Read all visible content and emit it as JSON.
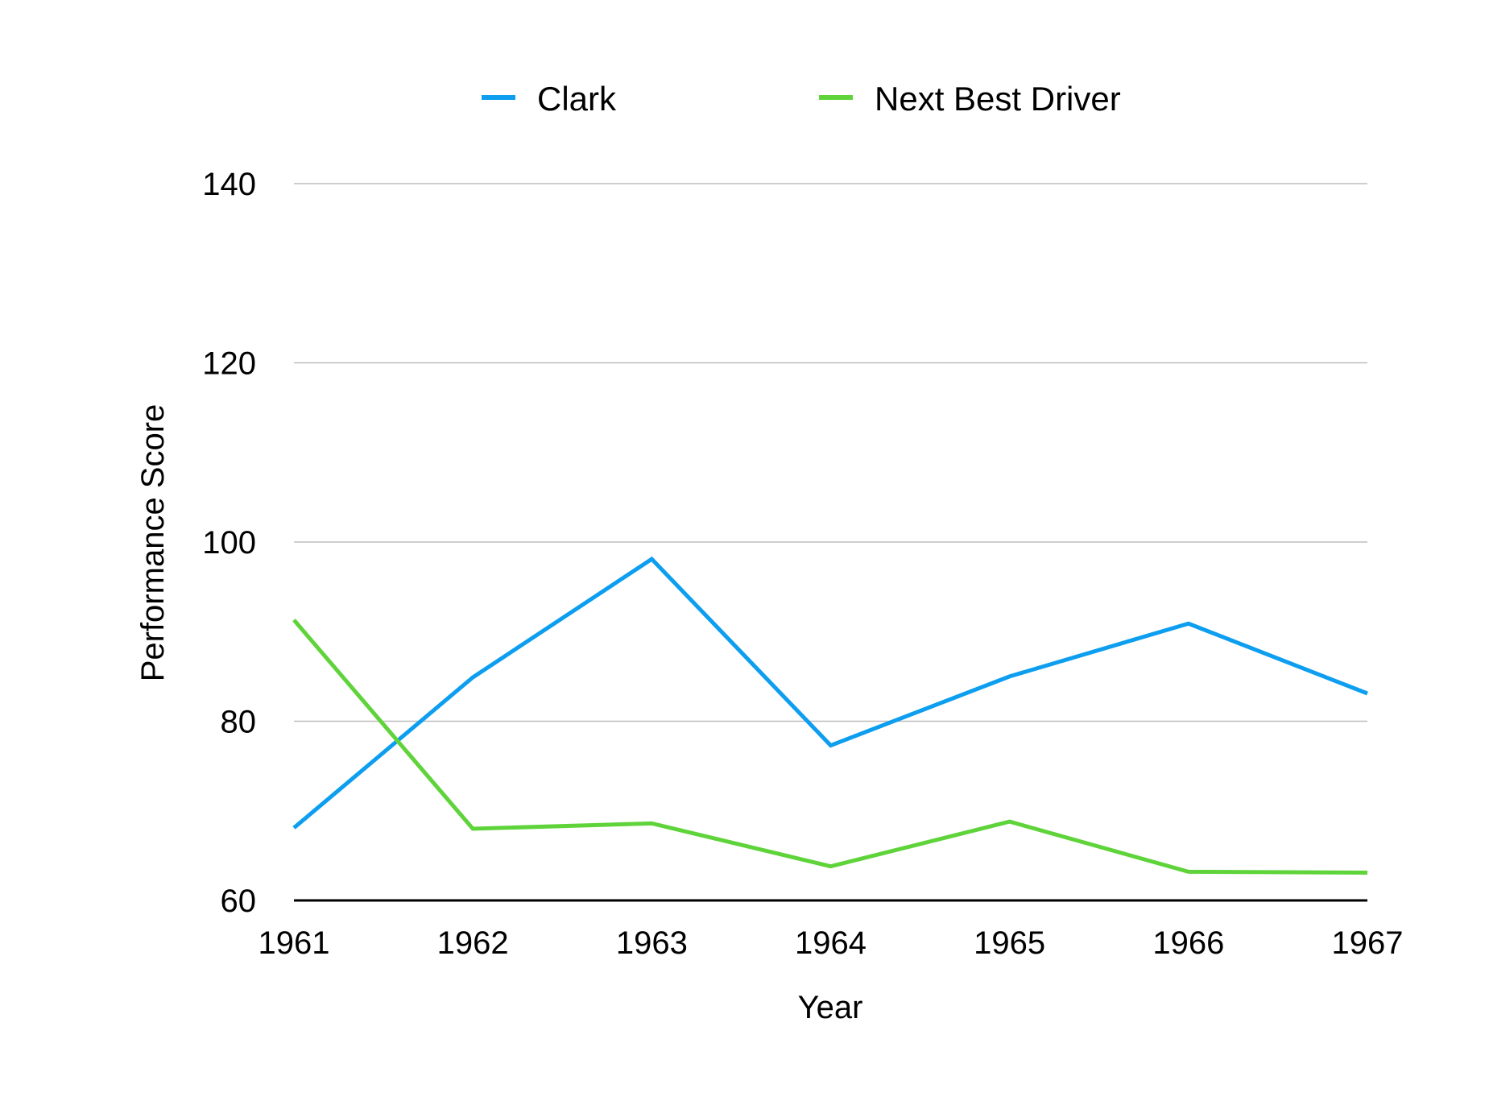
{
  "chart_data": {
    "type": "line",
    "title": "",
    "xlabel": "Year",
    "ylabel": "Performance Score",
    "categories": [
      "1961",
      "1962",
      "1963",
      "1964",
      "1965",
      "1966",
      "1967"
    ],
    "ylim": [
      60,
      140
    ],
    "yticks": [
      "60",
      "80",
      "100",
      "120",
      "140"
    ],
    "grid": true,
    "legend_position": "top",
    "series": [
      {
        "name": "Clark",
        "color": "#0d9ef0",
        "values": [
          68.1,
          84.9,
          98.1,
          77.3,
          85.0,
          90.9,
          83.1
        ]
      },
      {
        "name": "Next Best Driver",
        "color": "#5fd43a",
        "values": [
          91.3,
          68.0,
          68.6,
          63.8,
          68.8,
          63.2,
          63.1
        ]
      }
    ]
  }
}
